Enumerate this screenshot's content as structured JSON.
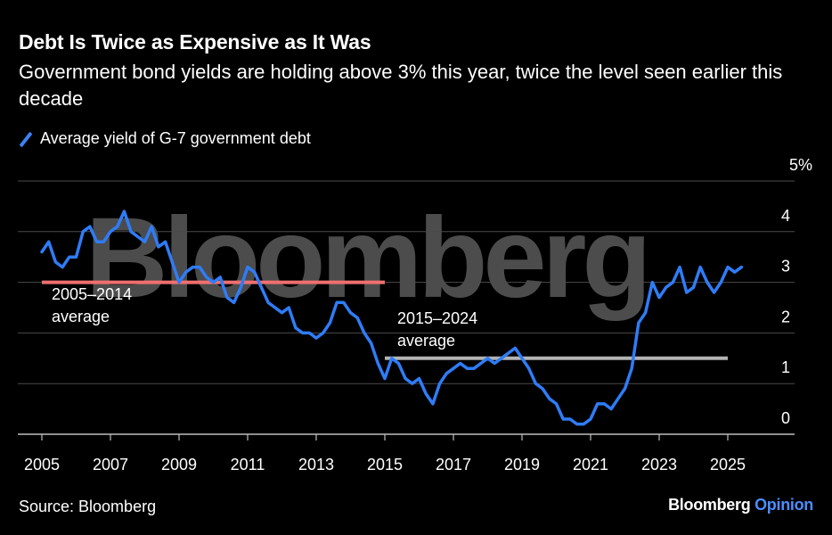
{
  "header": {
    "title": "Debt Is Twice as Expensive as It Was",
    "subtitle": "Government bond yields are holding above 3% this year, twice the level seen earlier this decade"
  },
  "legend": {
    "label": "Average yield of G-7 government debt"
  },
  "footer": {
    "source": "Source: Bloomberg",
    "brand_main": "Bloomberg",
    "brand_accent": "Opinion"
  },
  "watermark": "Bloomberg",
  "colors": {
    "line": "#2f7cf6",
    "avg_2005_2014": "#f06f6f",
    "avg_2015_2024": "#b3b3b3",
    "grid": "#4a4a4a"
  },
  "chart_data": {
    "type": "line",
    "xlim": [
      2005,
      2026.2
    ],
    "ylim": [
      0,
      5
    ],
    "x_ticks": [
      "2005",
      "2007",
      "2009",
      "2011",
      "2013",
      "2015",
      "2017",
      "2019",
      "2021",
      "2023",
      "2025"
    ],
    "y_ticks": [
      "0",
      "1",
      "2",
      "3",
      "4",
      "5%"
    ],
    "grid": true,
    "series": [
      {
        "name": "Average yield of G-7 government debt",
        "x": [
          2005.0,
          2005.2,
          2005.4,
          2005.6,
          2005.8,
          2006.0,
          2006.2,
          2006.4,
          2006.6,
          2006.8,
          2007.0,
          2007.2,
          2007.4,
          2007.6,
          2007.8,
          2008.0,
          2008.2,
          2008.4,
          2008.6,
          2008.8,
          2009.0,
          2009.2,
          2009.4,
          2009.6,
          2009.8,
          2010.0,
          2010.2,
          2010.4,
          2010.6,
          2010.8,
          2011.0,
          2011.2,
          2011.4,
          2011.6,
          2011.8,
          2012.0,
          2012.2,
          2012.4,
          2012.6,
          2012.8,
          2013.0,
          2013.2,
          2013.4,
          2013.6,
          2013.8,
          2014.0,
          2014.2,
          2014.4,
          2014.6,
          2014.8,
          2015.0,
          2015.2,
          2015.4,
          2015.6,
          2015.8,
          2016.0,
          2016.2,
          2016.4,
          2016.6,
          2016.8,
          2017.0,
          2017.2,
          2017.4,
          2017.6,
          2017.8,
          2018.0,
          2018.2,
          2018.4,
          2018.6,
          2018.8,
          2019.0,
          2019.2,
          2019.4,
          2019.6,
          2019.8,
          2020.0,
          2020.2,
          2020.4,
          2020.6,
          2020.8,
          2021.0,
          2021.2,
          2021.4,
          2021.6,
          2021.8,
          2022.0,
          2022.2,
          2022.4,
          2022.6,
          2022.8,
          2023.0,
          2023.2,
          2023.4,
          2023.6,
          2023.8,
          2024.0,
          2024.2,
          2024.4,
          2024.6,
          2024.8,
          2025.0,
          2025.2,
          2025.4
        ],
        "values": [
          3.6,
          3.8,
          3.4,
          3.3,
          3.5,
          3.5,
          4.0,
          4.1,
          3.8,
          3.8,
          4.0,
          4.1,
          4.4,
          4.0,
          3.9,
          3.8,
          4.1,
          3.7,
          3.8,
          3.4,
          3.0,
          3.2,
          3.3,
          3.3,
          3.1,
          3.0,
          3.1,
          2.7,
          2.6,
          2.9,
          3.3,
          3.2,
          2.9,
          2.6,
          2.5,
          2.4,
          2.5,
          2.1,
          2.0,
          2.0,
          1.9,
          2.0,
          2.2,
          2.6,
          2.6,
          2.4,
          2.3,
          2.0,
          1.8,
          1.4,
          1.1,
          1.5,
          1.4,
          1.1,
          1.0,
          1.1,
          0.8,
          0.6,
          1.0,
          1.2,
          1.3,
          1.4,
          1.3,
          1.3,
          1.4,
          1.5,
          1.4,
          1.5,
          1.6,
          1.7,
          1.5,
          1.3,
          1.0,
          0.9,
          0.7,
          0.6,
          0.3,
          0.3,
          0.2,
          0.2,
          0.3,
          0.6,
          0.6,
          0.5,
          0.7,
          0.9,
          1.3,
          2.2,
          2.4,
          3.0,
          2.7,
          2.9,
          3.0,
          3.3,
          2.8,
          2.9,
          3.3,
          3.0,
          2.8,
          3.0,
          3.3,
          3.2,
          3.3
        ]
      }
    ],
    "annotations": [
      {
        "label_line1": "2005–2014",
        "label_line2": "average",
        "value": 3.0,
        "x_start": 2005.0,
        "x_end": 2015.0
      },
      {
        "label_line1": "2015–2024",
        "label_line2": "average",
        "value": 1.5,
        "x_start": 2015.0,
        "x_end": 2025.0
      }
    ]
  }
}
